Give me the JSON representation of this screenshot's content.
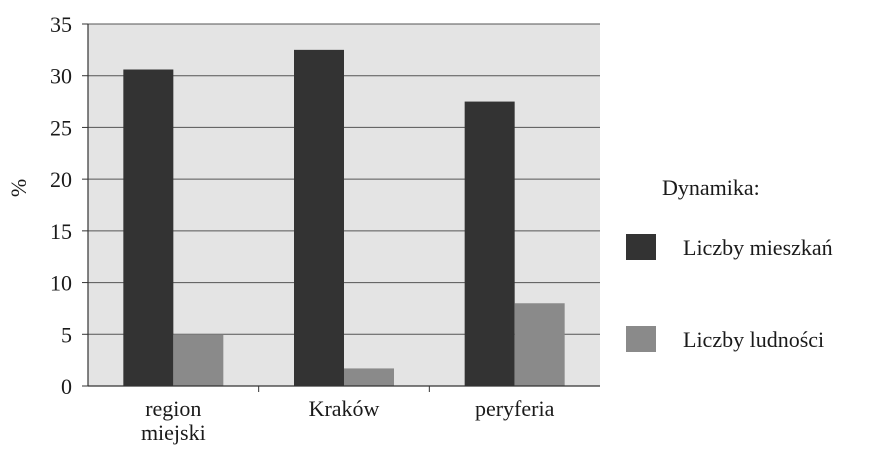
{
  "chart_data": {
    "type": "bar",
    "categories": [
      "region miejski",
      "Kraków",
      "peryferia"
    ],
    "series": [
      {
        "name": "Liczby mieszkań",
        "values": [
          30.6,
          32.5,
          27.5
        ],
        "color": "#333333"
      },
      {
        "name": "Liczby ludności",
        "values": [
          5.0,
          1.7,
          8.0
        ],
        "color": "#8a8a8a"
      }
    ],
    "title": "",
    "xlabel": "",
    "ylabel": "%",
    "ylim": [
      0,
      35
    ],
    "yticks": [
      0,
      5,
      10,
      15,
      20,
      25,
      30,
      35
    ],
    "grid": true,
    "plot_background": "#e4e4e4",
    "legend": {
      "title": "Dynamika:",
      "placement": "right"
    }
  }
}
